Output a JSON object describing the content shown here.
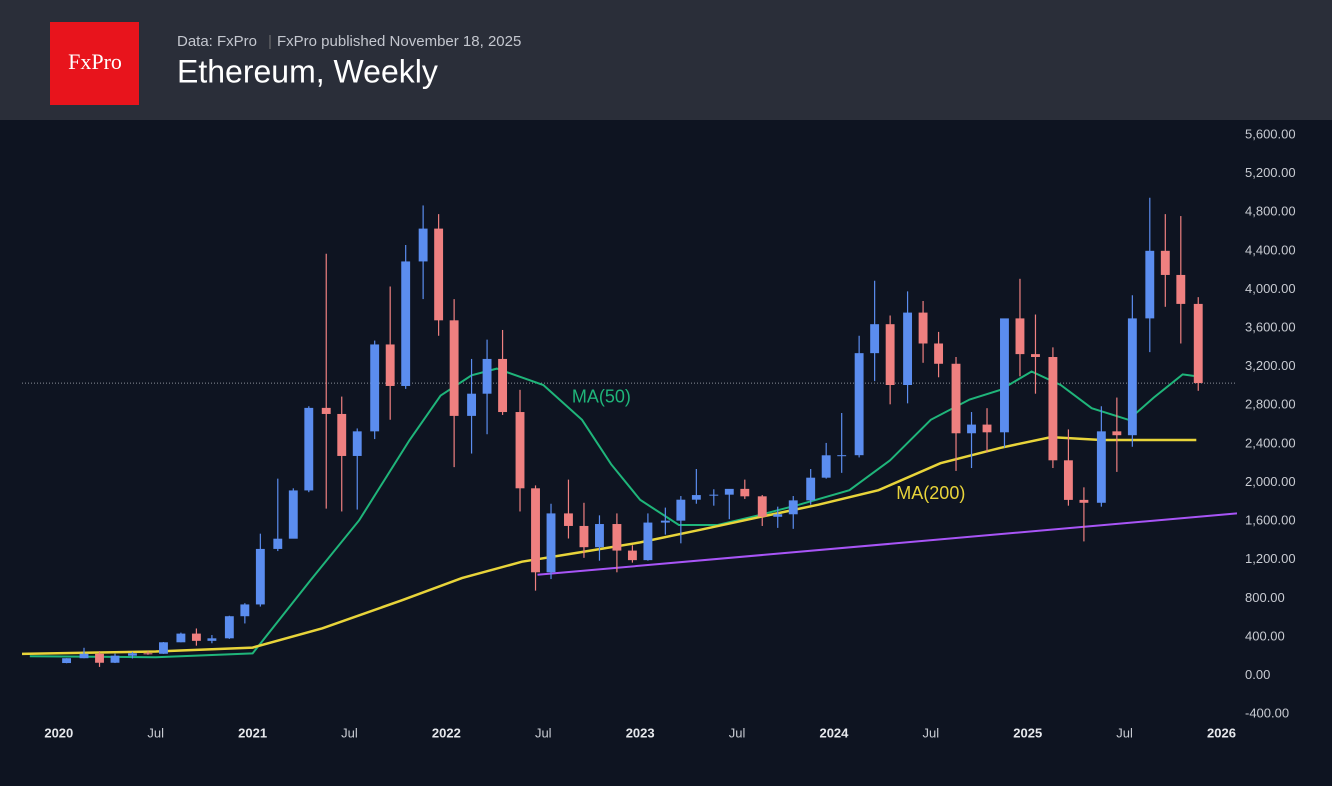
{
  "logo": "FxPro",
  "chart_data": {
    "type": "candlestick",
    "source": "Data: FxPro",
    "subtitle": "FxPro published November 18, 2025",
    "title": "Ethereum, Weekly",
    "up_color": "#5b8def",
    "down_color": "#ef8080",
    "xlim": [
      2019.81,
      2026.08
    ],
    "ylim": [
      -460,
      5755
    ],
    "xticks": [
      {
        "value": 2020,
        "label": "2020"
      },
      {
        "value": 2020.5,
        "label": "Jul"
      },
      {
        "value": 2021,
        "label": "2021"
      },
      {
        "value": 2021.5,
        "label": "Jul"
      },
      {
        "value": 2022,
        "label": "2022"
      },
      {
        "value": 2022.5,
        "label": "Jul"
      },
      {
        "value": 2023,
        "label": "2023"
      },
      {
        "value": 2023.5,
        "label": "Jul"
      },
      {
        "value": 2024,
        "label": "2024"
      },
      {
        "value": 2024.5,
        "label": "Jul"
      },
      {
        "value": 2025,
        "label": "2025"
      },
      {
        "value": 2025.5,
        "label": "Jul"
      },
      {
        "value": 2026,
        "label": "2026"
      }
    ],
    "yticks": [
      {
        "value": -400,
        "label": "-400.00"
      },
      {
        "value": 0,
        "label": "0.00"
      },
      {
        "value": 400,
        "label": "400.00"
      },
      {
        "value": 800,
        "label": "800.00"
      },
      {
        "value": 1200,
        "label": "1,200.00"
      },
      {
        "value": 1600,
        "label": "1,600.00"
      },
      {
        "value": 2000,
        "label": "2,000.00"
      },
      {
        "value": 2400,
        "label": "2,400.00"
      },
      {
        "value": 2800,
        "label": "2,800.00"
      },
      {
        "value": 3200,
        "label": "3,200.00"
      },
      {
        "value": 3600,
        "label": "3,600.00"
      },
      {
        "value": 4000,
        "label": "4,000.00"
      },
      {
        "value": 4400,
        "label": "4,400.00"
      },
      {
        "value": 4800,
        "label": "4,800.00"
      },
      {
        "value": 5200,
        "label": "5,200.00"
      },
      {
        "value": 5600,
        "label": "5,600.00"
      }
    ],
    "x": [
      2020.04,
      2020.13,
      2020.21,
      2020.29,
      2020.38,
      2020.46,
      2020.54,
      2020.63,
      2020.71,
      2020.79,
      2020.88,
      2020.96,
      2021.04,
      2021.13,
      2021.21,
      2021.29,
      2021.38,
      2021.46,
      2021.54,
      2021.63,
      2021.71,
      2021.79,
      2021.88,
      2021.96,
      2022.04,
      2022.13,
      2022.21,
      2022.29,
      2022.38,
      2022.46,
      2022.54,
      2022.63,
      2022.71,
      2022.79,
      2022.88,
      2022.96,
      2023.04,
      2023.13,
      2023.21,
      2023.29,
      2023.38,
      2023.46,
      2023.54,
      2023.63,
      2023.71,
      2023.79,
      2023.88,
      2023.96,
      2024.04,
      2024.13,
      2024.21,
      2024.29,
      2024.38,
      2024.46,
      2024.54,
      2024.63,
      2024.71,
      2024.79,
      2024.88,
      2024.96,
      2025.04,
      2025.13,
      2025.21,
      2025.29,
      2025.38,
      2025.46,
      2025.54,
      2025.63,
      2025.71,
      2025.79,
      2025.88
    ],
    "open": [
      130,
      180,
      226,
      133,
      206,
      231,
      226,
      345,
      435,
      360,
      386,
      615,
      737,
      1312,
      1418,
      1918,
      2773,
      2710,
      2275,
      2530,
      3430,
      3000,
      4290,
      4630,
      3680,
      2690,
      2920,
      3280,
      2730,
      1940,
      1070,
      1680,
      1550,
      1330,
      1570,
      1295,
      1196,
      1585,
      1605,
      1822,
      1870,
      1874,
      1934,
      1857,
      1645,
      1671,
      1815,
      2050,
      2282,
      2283,
      3340,
      3640,
      3010,
      3760,
      3440,
      3230,
      2510,
      2600,
      2520,
      3700,
      3330,
      3300,
      2230,
      1820,
      1790,
      2530,
      2490,
      3700,
      4400,
      4150,
      3850
    ],
    "high": [
      180,
      288,
      253,
      227,
      245,
      253,
      348,
      445,
      488,
      420,
      620,
      750,
      1470,
      2040,
      1940,
      2790,
      4370,
      2890,
      2560,
      3470,
      4030,
      4460,
      4870,
      4780,
      3900,
      3280,
      3480,
      3580,
      2960,
      1970,
      1780,
      2030,
      1790,
      1660,
      1680,
      1350,
      1680,
      1740,
      1860,
      2140,
      1930,
      1930,
      2030,
      1870,
      1750,
      1860,
      2140,
      2410,
      2720,
      3520,
      4090,
      3730,
      3980,
      3880,
      3560,
      3300,
      2730,
      2770,
      3690,
      4110,
      3740,
      3400,
      2550,
      1950,
      2790,
      2880,
      3940,
      4950,
      4780,
      4760,
      3920
    ],
    "low": [
      128,
      180,
      90,
      130,
      177,
      216,
      225,
      345,
      310,
      335,
      380,
      540,
      715,
      1290,
      1420,
      1900,
      1730,
      1700,
      1720,
      2450,
      2650,
      2970,
      3900,
      3520,
      2160,
      2300,
      2500,
      2700,
      1700,
      880,
      1000,
      1420,
      1220,
      1190,
      1070,
      1170,
      1190,
      1460,
      1370,
      1780,
      1760,
      1620,
      1830,
      1550,
      1530,
      1520,
      1770,
      2040,
      2100,
      2260,
      3050,
      2810,
      2820,
      3240,
      3090,
      2120,
      2150,
      2310,
      2360,
      3100,
      2920,
      2150,
      1760,
      1390,
      1750,
      2110,
      2370,
      3350,
      3820,
      3440,
      2950
    ],
    "close": [
      180,
      226,
      133,
      206,
      231,
      226,
      345,
      435,
      360,
      386,
      615,
      737,
      1312,
      1418,
      1918,
      2773,
      2710,
      2275,
      2530,
      3430,
      3000,
      4290,
      4630,
      3680,
      2690,
      2920,
      3280,
      2730,
      1940,
      1070,
      1680,
      1550,
      1330,
      1570,
      1295,
      1196,
      1585,
      1605,
      1822,
      1870,
      1874,
      1934,
      1857,
      1645,
      1671,
      1815,
      2050,
      2282,
      2283,
      3340,
      3640,
      3010,
      3760,
      3440,
      3230,
      2510,
      2600,
      2520,
      3700,
      3330,
      3300,
      2230,
      1820,
      1790,
      2530,
      2490,
      3700,
      4400,
      4150,
      3850,
      3030
    ],
    "price_line": 3030,
    "lines": [
      {
        "label": "MA(50)",
        "color": "#1fb57a",
        "label_at": [
          2022.8,
          2880
        ],
        "x": [
          2019.85,
          2020.5,
          2021.0,
          2021.3,
          2021.55,
          2021.81,
          2021.97,
          2022.13,
          2022.26,
          2022.5,
          2022.7,
          2022.85,
          2023.0,
          2023.2,
          2023.4,
          2023.61,
          2023.82,
          2024.08,
          2024.29,
          2024.5,
          2024.7,
          2024.86,
          2025.02,
          2025.17,
          2025.33,
          2025.52,
          2025.65,
          2025.8,
          2025.87
        ],
        "values": [
          200,
          190,
          230,
          990,
          1610,
          2440,
          2900,
          3110,
          3180,
          3010,
          2650,
          2190,
          1820,
          1560,
          1560,
          1660,
          1770,
          1920,
          2230,
          2650,
          2860,
          2960,
          3150,
          3010,
          2770,
          2650,
          2880,
          3120,
          3100
        ]
      },
      {
        "label": "MA(200)",
        "color": "#e8d43a",
        "label_at": [
          2024.5,
          1880
        ],
        "x": [
          2019.81,
          2020.5,
          2021.0,
          2021.36,
          2021.77,
          2022.08,
          2022.39,
          2022.7,
          2023.0,
          2023.31,
          2023.61,
          2023.92,
          2024.23,
          2024.55,
          2024.86,
          2025.12,
          2025.38,
          2025.87
        ],
        "values": [
          225,
          250,
          290,
          490,
          780,
          1010,
          1180,
          1280,
          1380,
          1510,
          1640,
          1770,
          1920,
          2200,
          2360,
          2470,
          2440,
          2440
        ]
      },
      {
        "color": "#a855f7",
        "x": [
          2022.47,
          2026.08
        ],
        "values": [
          1045,
          1680
        ]
      }
    ]
  }
}
